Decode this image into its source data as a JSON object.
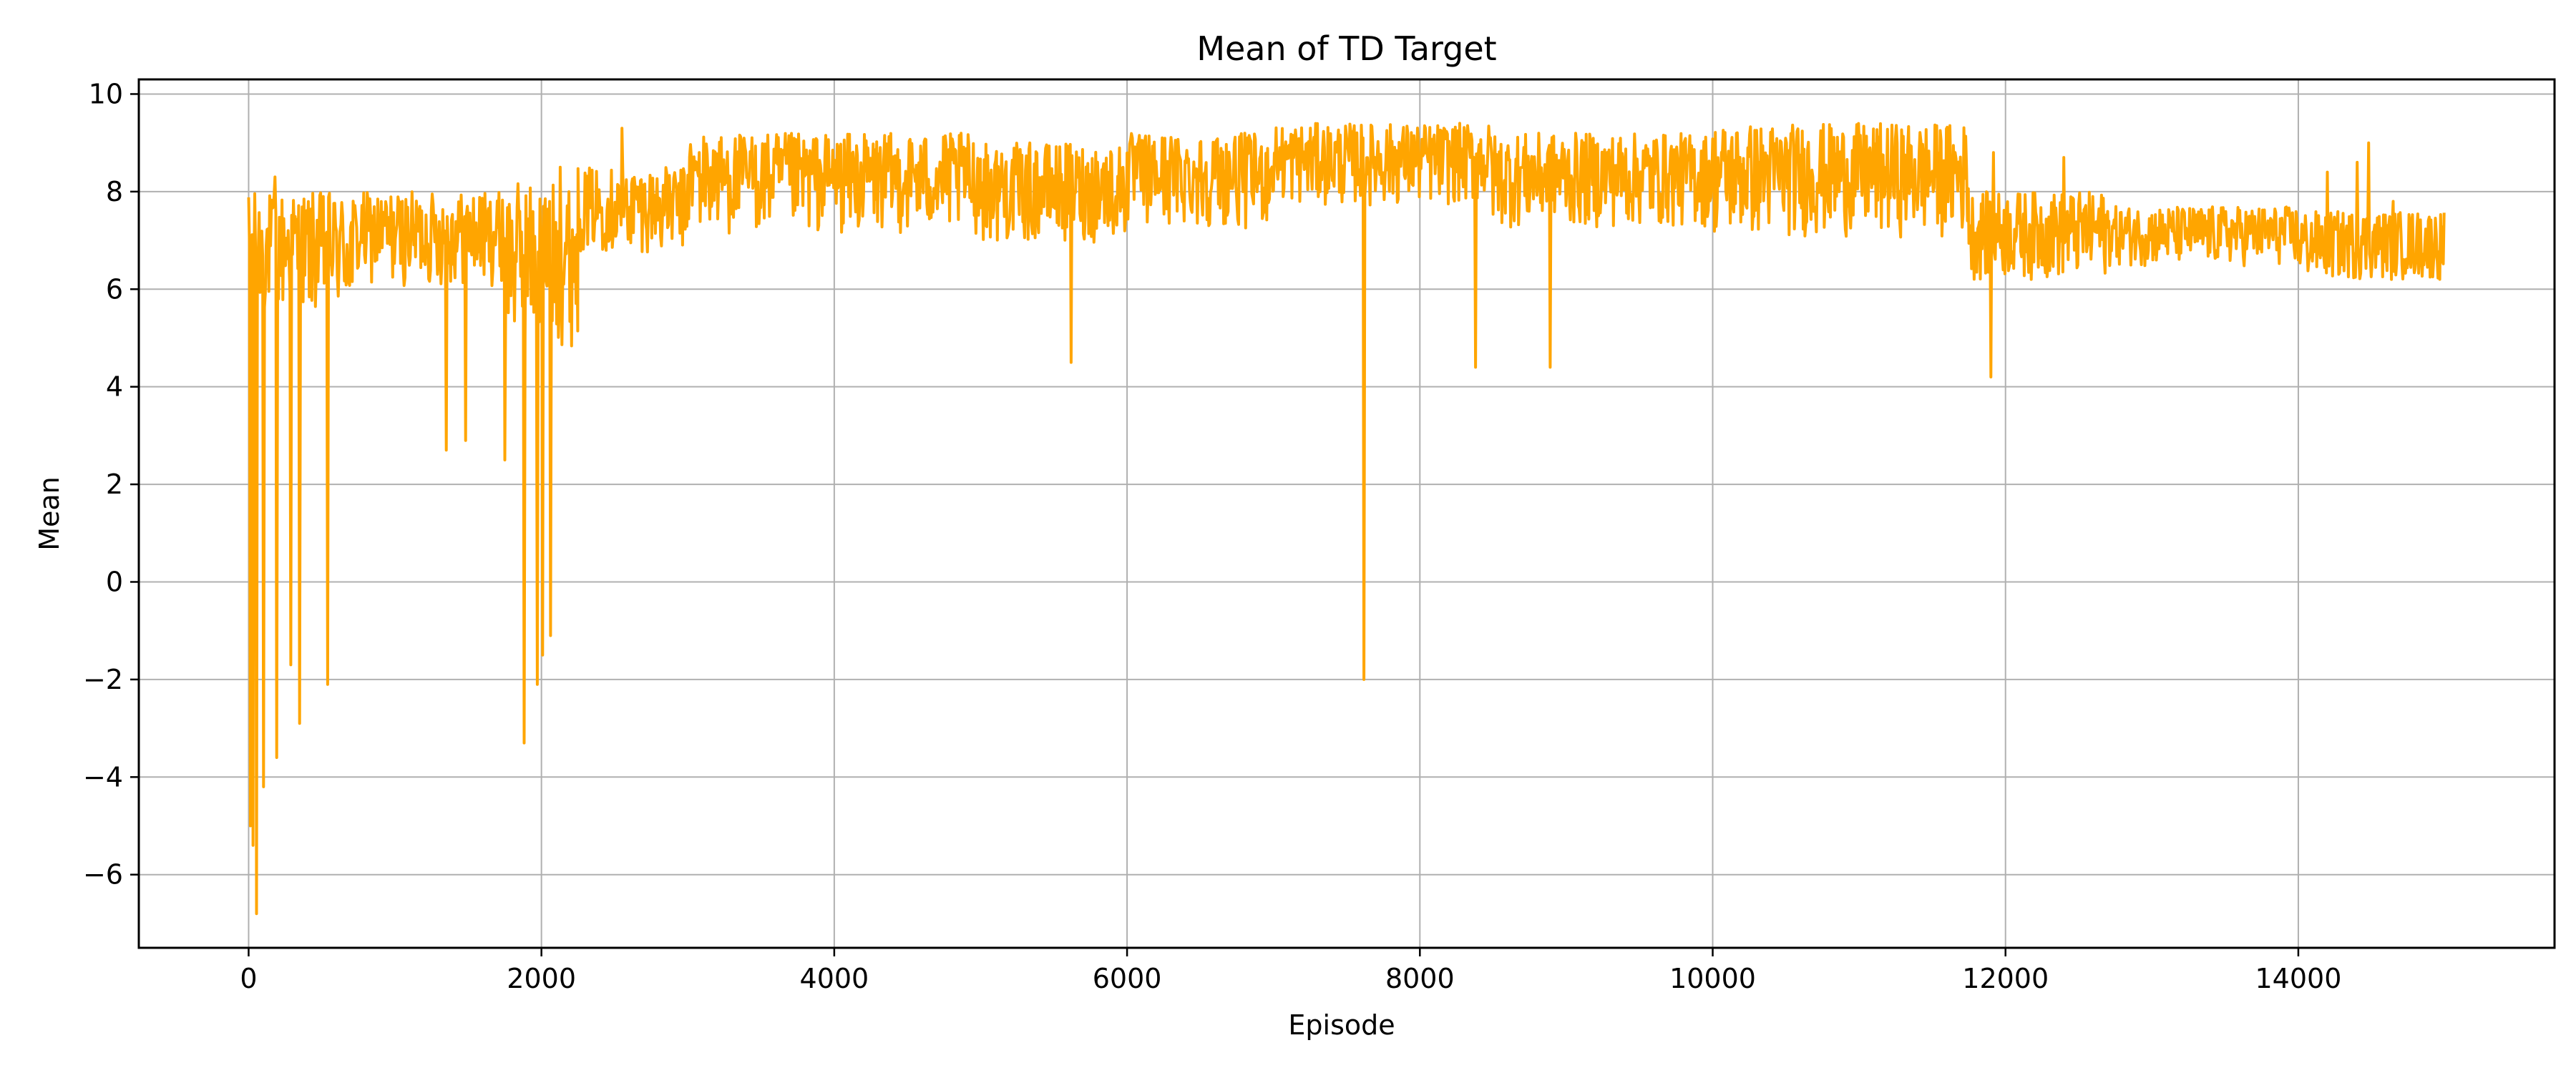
{
  "chart_data": {
    "type": "line",
    "title": "Mean of TD Target",
    "xlabel": "Episode",
    "ylabel": "Mean",
    "xlim": [
      -750,
      15750
    ],
    "ylim": [
      -7.5,
      10.3
    ],
    "xticks": [
      0,
      2000,
      4000,
      6000,
      8000,
      10000,
      12000,
      14000
    ],
    "yticks": [
      -6,
      -4,
      -2,
      0,
      2,
      4,
      6,
      8,
      10
    ],
    "grid": true,
    "series_color": "#FFA500",
    "series": [
      {
        "segments": [
          {
            "x": [
              0,
              750
            ],
            "low": 4.0,
            "high": 8.0
          },
          {
            "x": [
              750,
              1750
            ],
            "low": 5.0,
            "high": 8.0
          },
          {
            "x": [
              1750,
              2250
            ],
            "low": 3.0,
            "high": 8.2
          },
          {
            "x": [
              2250,
              3000
            ],
            "low": 5.8,
            "high": 8.5
          },
          {
            "x": [
              3000,
              5000
            ],
            "low": 6.0,
            "high": 9.2
          },
          {
            "x": [
              5000,
              6000
            ],
            "low": 5.8,
            "high": 9.0
          },
          {
            "x": [
              6000,
              7000
            ],
            "low": 6.2,
            "high": 9.2
          },
          {
            "x": [
              7000,
              8500
            ],
            "low": 6.8,
            "high": 9.4
          },
          {
            "x": [
              8500,
              10000
            ],
            "low": 6.2,
            "high": 9.2
          },
          {
            "x": [
              10000,
              11750
            ],
            "low": 5.8,
            "high": 9.4
          },
          {
            "x": [
              11750,
              12700
            ],
            "low": 5.2,
            "high": 8.0
          },
          {
            "x": [
              12700,
              14000
            ],
            "low": 5.8,
            "high": 7.7
          },
          {
            "x": [
              14000,
              15000
            ],
            "low": 5.4,
            "high": 7.6
          }
        ],
        "spikes": [
          {
            "x": 10,
            "y": -5.0
          },
          {
            "x": 30,
            "y": -5.4
          },
          {
            "x": 55,
            "y": -6.8
          },
          {
            "x": 100,
            "y": -4.2
          },
          {
            "x": 190,
            "y": -3.6
          },
          {
            "x": 290,
            "y": -1.7
          },
          {
            "x": 350,
            "y": -2.9
          },
          {
            "x": 540,
            "y": -2.1
          },
          {
            "x": 1350,
            "y": 2.7
          },
          {
            "x": 1480,
            "y": 2.9
          },
          {
            "x": 1750,
            "y": 2.5
          },
          {
            "x": 1880,
            "y": -3.3
          },
          {
            "x": 1970,
            "y": -2.1
          },
          {
            "x": 2010,
            "y": -1.5
          },
          {
            "x": 2060,
            "y": -1.1
          },
          {
            "x": 5620,
            "y": 4.5
          },
          {
            "x": 7620,
            "y": -2.0
          },
          {
            "x": 8380,
            "y": 4.4
          },
          {
            "x": 8890,
            "y": 4.4
          },
          {
            "x": 11900,
            "y": 4.2
          }
        ],
        "upper_spikes": [
          {
            "x": 180,
            "y": 8.3
          },
          {
            "x": 2130,
            "y": 8.5
          },
          {
            "x": 2550,
            "y": 9.3
          },
          {
            "x": 11920,
            "y": 8.8
          },
          {
            "x": 12400,
            "y": 8.7
          },
          {
            "x": 14200,
            "y": 8.4
          },
          {
            "x": 14400,
            "y": 8.6
          },
          {
            "x": 14480,
            "y": 9.0
          },
          {
            "x": 14650,
            "y": 7.8
          }
        ]
      }
    ]
  }
}
